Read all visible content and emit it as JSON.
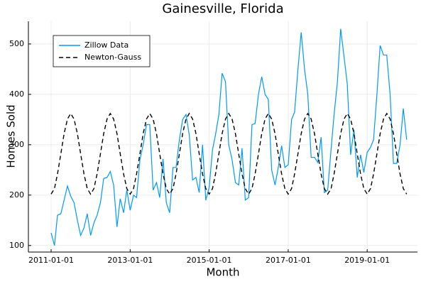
{
  "chart_data": {
    "type": "line",
    "title": "Gainesville, Florida",
    "xlabel": "Month",
    "ylabel": "Homes Sold",
    "x": [
      "2011-01-01",
      "2011-02-01",
      "2011-03-01",
      "2011-04-01",
      "2011-05-01",
      "2011-06-01",
      "2011-07-01",
      "2011-08-01",
      "2011-09-01",
      "2011-10-01",
      "2011-11-01",
      "2011-12-01",
      "2012-01-01",
      "2012-02-01",
      "2012-03-01",
      "2012-04-01",
      "2012-05-01",
      "2012-06-01",
      "2012-07-01",
      "2012-08-01",
      "2012-09-01",
      "2012-10-01",
      "2012-11-01",
      "2012-12-01",
      "2013-01-01",
      "2013-02-01",
      "2013-03-01",
      "2013-04-01",
      "2013-05-01",
      "2013-06-01",
      "2013-07-01",
      "2013-08-01",
      "2013-09-01",
      "2013-10-01",
      "2013-11-01",
      "2013-12-01",
      "2014-01-01",
      "2014-02-01",
      "2014-03-01",
      "2014-04-01",
      "2014-05-01",
      "2014-06-01",
      "2014-07-01",
      "2014-08-01",
      "2014-09-01",
      "2014-10-01",
      "2014-11-01",
      "2014-12-01",
      "2015-01-01",
      "2015-02-01",
      "2015-03-01",
      "2015-04-01",
      "2015-05-01",
      "2015-06-01",
      "2015-07-01",
      "2015-08-01",
      "2015-09-01",
      "2015-10-01",
      "2015-11-01",
      "2015-12-01",
      "2016-01-01",
      "2016-02-01",
      "2016-03-01",
      "2016-04-01",
      "2016-05-01",
      "2016-06-01",
      "2016-07-01",
      "2016-08-01",
      "2016-09-01",
      "2016-10-01",
      "2016-11-01",
      "2016-12-01",
      "2017-01-01",
      "2017-02-01",
      "2017-03-01",
      "2017-04-01",
      "2017-05-01",
      "2017-06-01",
      "2017-07-01",
      "2017-08-01",
      "2017-09-01",
      "2017-10-01",
      "2017-11-01",
      "2017-12-01",
      "2018-01-01",
      "2018-02-01",
      "2018-03-01",
      "2018-04-01",
      "2018-05-01",
      "2018-06-01",
      "2018-07-01",
      "2018-08-01",
      "2018-09-01",
      "2018-10-01",
      "2018-11-01",
      "2018-12-01",
      "2019-01-01",
      "2019-02-01",
      "2019-03-01",
      "2019-04-01",
      "2019-05-01",
      "2019-06-01",
      "2019-07-01",
      "2019-08-01",
      "2019-09-01",
      "2019-10-01",
      "2019-11-01",
      "2019-12-01",
      "2020-01-01"
    ],
    "series": [
      {
        "name": "Zillow Data",
        "color": "#009af9",
        "dash": false,
        "values": [
          125,
          100,
          160,
          163,
          190,
          218,
          198,
          185,
          150,
          120,
          135,
          163,
          120,
          145,
          160,
          185,
          233,
          235,
          247,
          220,
          137,
          193,
          165,
          210,
          170,
          200,
          195,
          270,
          300,
          340,
          340,
          210,
          225,
          195,
          272,
          185,
          165,
          255,
          255,
          310,
          350,
          360,
          320,
          230,
          235,
          205,
          300,
          190,
          215,
          290,
          320,
          360,
          442,
          425,
          300,
          270,
          225,
          220,
          293,
          190,
          195,
          340,
          342,
          400,
          435,
          400,
          390,
          250,
          220,
          255,
          298,
          255,
          260,
          350,
          365,
          450,
          523,
          450,
          400,
          275,
          275,
          265,
          315,
          205,
          210,
          290,
          360,
          425,
          530,
          475,
          420,
          280,
          330,
          235,
          280,
          245,
          285,
          295,
          310,
          400,
          497,
          478,
          478,
          400,
          263,
          263,
          300,
          372,
          310
        ]
      },
      {
        "name": "Newton-Gauss",
        "color": "#000000",
        "dash": true,
        "values": [
          202,
          213,
          242,
          282,
          322,
          351,
          362,
          351,
          322,
          282,
          242,
          213,
          202,
          213,
          242,
          282,
          322,
          351,
          362,
          351,
          322,
          282,
          242,
          213,
          202,
          213,
          242,
          282,
          322,
          351,
          362,
          351,
          322,
          282,
          242,
          213,
          202,
          213,
          242,
          282,
          322,
          351,
          362,
          351,
          322,
          282,
          242,
          213,
          202,
          213,
          242,
          282,
          322,
          351,
          362,
          351,
          322,
          282,
          242,
          213,
          202,
          213,
          242,
          282,
          322,
          351,
          362,
          351,
          322,
          282,
          242,
          213,
          202,
          213,
          242,
          282,
          322,
          351,
          362,
          351,
          322,
          282,
          242,
          213,
          202,
          213,
          242,
          282,
          322,
          351,
          362,
          351,
          322,
          282,
          242,
          213,
          202,
          213,
          242,
          282,
          322,
          351,
          362,
          351,
          322,
          282,
          242,
          213,
          202
        ]
      }
    ],
    "xlim": [
      "2010-06-05",
      "2020-04-10"
    ],
    "xticks": [
      "2011-01-01",
      "2013-01-01",
      "2015-01-01",
      "2017-01-01",
      "2019-01-01"
    ],
    "ylim": [
      87,
      545
    ],
    "yticks": [
      100,
      200,
      300,
      400,
      500
    ],
    "grid": true,
    "legend": "top-left"
  }
}
